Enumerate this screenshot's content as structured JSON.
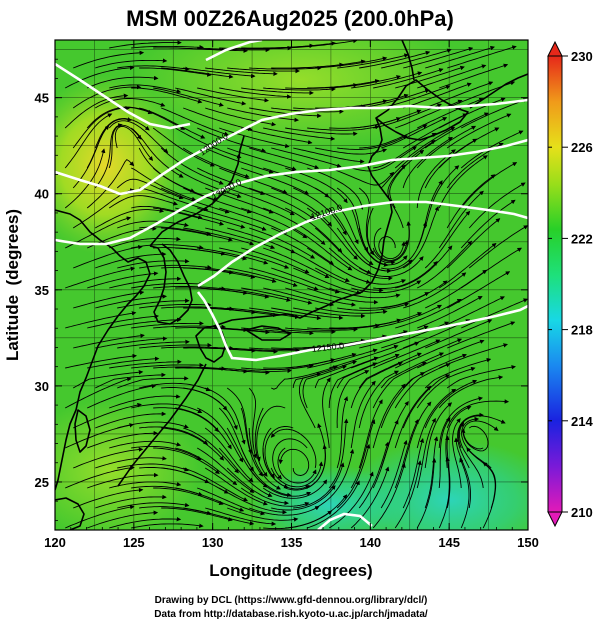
{
  "title": "MSM 00Z26Aug2025 (200.0hPa)",
  "x_axis": {
    "label": "Longitude (degrees)",
    "range": [
      120,
      150
    ],
    "ticks": [
      "120",
      "125",
      "130",
      "135",
      "140",
      "145",
      "150"
    ]
  },
  "y_axis": {
    "label": "Latitude  (degrees)",
    "range": [
      22.5,
      48
    ],
    "ticks": [
      "25",
      "30",
      "35",
      "40",
      "45"
    ]
  },
  "colorbar": {
    "range": [
      210,
      230
    ],
    "ticks": [
      "210",
      "214",
      "218",
      "222",
      "226",
      "230"
    ]
  },
  "contours": [
    {
      "label": "12000.0"
    },
    {
      "label": "12050.0"
    },
    {
      "label": "12100.0"
    },
    {
      "label": "12150.0"
    }
  ],
  "credits": {
    "line1": "Drawing by DCL (https://www.gfd-dennou.org/library/dcl/)",
    "line2": "Data from http://database.rish.kyoto-u.ac.jp/arch/jmadata/"
  },
  "colors": {
    "field_main": "#43c62e",
    "field_warm": "#b9e21e",
    "field_cool": "#28d288",
    "contour": "#ffffff",
    "coastline": "#000000",
    "streamline": "#000000"
  }
}
